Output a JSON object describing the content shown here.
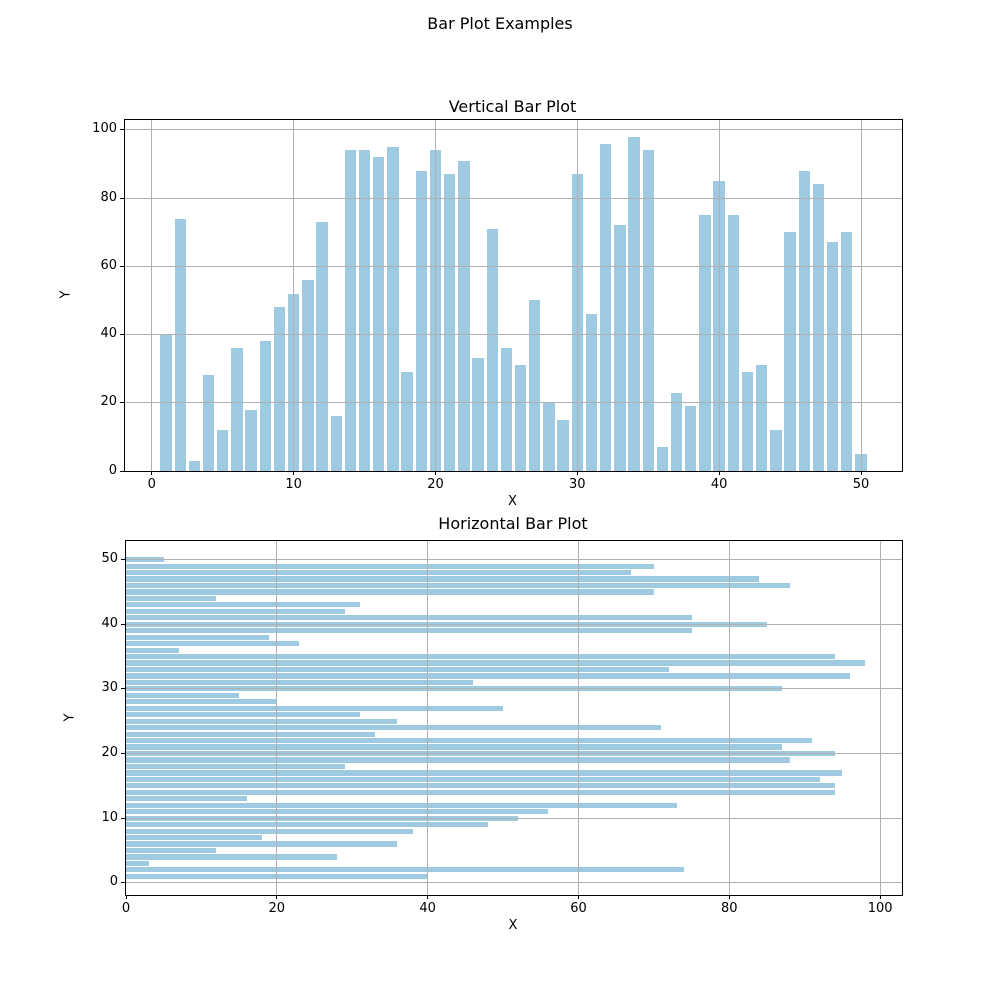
{
  "figure": {
    "title": "Bar Plot Examples"
  },
  "colors": {
    "bar": "#9ECAE1",
    "grid": "#B0B0B0",
    "spine": "#000000",
    "text": "#000000",
    "background": "#FFFFFF"
  },
  "chart_data": [
    {
      "type": "bar",
      "orientation": "vertical",
      "title": "Vertical Bar Plot",
      "xlabel": "X",
      "ylabel": "Y",
      "x": [
        1,
        2,
        3,
        4,
        5,
        6,
        7,
        8,
        9,
        10,
        11,
        12,
        13,
        14,
        15,
        16,
        17,
        18,
        19,
        20,
        21,
        22,
        23,
        24,
        25,
        26,
        27,
        28,
        29,
        30,
        31,
        32,
        33,
        34,
        35,
        36,
        37,
        38,
        39,
        40,
        41,
        42,
        43,
        44,
        45,
        46,
        47,
        48,
        49,
        50
      ],
      "values": [
        40,
        74,
        3,
        28,
        12,
        36,
        18,
        38,
        48,
        52,
        56,
        73,
        16,
        94,
        94,
        92,
        95,
        29,
        88,
        94,
        87,
        91,
        33,
        71,
        36,
        31,
        50,
        20,
        15,
        87,
        46,
        96,
        72,
        98,
        94,
        7,
        23,
        19,
        75,
        85,
        75,
        29,
        31,
        12,
        70,
        88,
        84,
        67,
        70,
        5
      ],
      "bar_width": 0.8,
      "xlim": [
        -1.89,
        52.89
      ],
      "ylim": [
        0,
        102.9
      ],
      "xticks": [
        0,
        10,
        20,
        30,
        40,
        50
      ],
      "yticks": [
        0,
        20,
        40,
        60,
        80,
        100
      ],
      "grid": true
    },
    {
      "type": "bar",
      "orientation": "horizontal",
      "title": "Horizontal Bar Plot",
      "xlabel": "X",
      "ylabel": "Y",
      "y": [
        1,
        2,
        3,
        4,
        5,
        6,
        7,
        8,
        9,
        10,
        11,
        12,
        13,
        14,
        15,
        16,
        17,
        18,
        19,
        20,
        21,
        22,
        23,
        24,
        25,
        26,
        27,
        28,
        29,
        30,
        31,
        32,
        33,
        34,
        35,
        36,
        37,
        38,
        39,
        40,
        41,
        42,
        43,
        44,
        45,
        46,
        47,
        48,
        49,
        50
      ],
      "values": [
        40,
        74,
        3,
        28,
        12,
        36,
        18,
        38,
        48,
        52,
        56,
        73,
        16,
        94,
        94,
        92,
        95,
        29,
        88,
        94,
        87,
        91,
        33,
        71,
        36,
        31,
        50,
        20,
        15,
        87,
        46,
        96,
        72,
        98,
        94,
        7,
        23,
        19,
        75,
        85,
        75,
        29,
        31,
        12,
        70,
        88,
        84,
        67,
        70,
        5
      ],
      "bar_height": 0.8,
      "xlim": [
        0,
        102.9
      ],
      "ylim": [
        -1.89,
        52.89
      ],
      "xticks": [
        0,
        20,
        40,
        60,
        80,
        100
      ],
      "yticks": [
        0,
        10,
        20,
        30,
        40,
        50
      ],
      "grid": true
    }
  ]
}
